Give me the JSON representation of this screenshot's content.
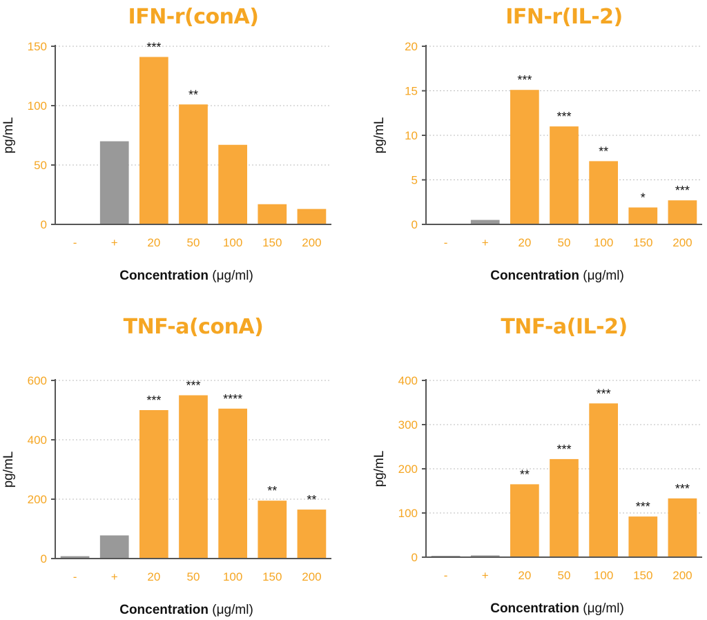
{
  "chart_data": [
    {
      "type": "bar",
      "title": "IFN-r(conA)",
      "xlabel_bold": "Concentration",
      "xlabel_unit": "(μg/ml)",
      "ylabel": "pg/mL",
      "categories": [
        "-",
        "+",
        "20",
        "50",
        "100",
        "150",
        "200"
      ],
      "values": [
        0,
        70,
        141,
        101,
        67,
        17,
        13
      ],
      "significance": [
        "",
        "",
        "***",
        "**",
        "",
        "",
        ""
      ],
      "ylim": [
        0,
        150
      ],
      "yticks": [
        0,
        50,
        100,
        150
      ],
      "grid": true,
      "bar_colors": [
        "#999999",
        "#999999",
        "#f9a93a",
        "#f9a93a",
        "#f9a93a",
        "#f9a93a",
        "#f9a93a"
      ]
    },
    {
      "type": "bar",
      "title": "IFN-r(IL-2)",
      "xlabel_bold": "Concentration",
      "xlabel_unit": "(μg/ml)",
      "ylabel": "pg/mL",
      "categories": [
        "-",
        "+",
        "20",
        "50",
        "100",
        "150",
        "200"
      ],
      "values": [
        0,
        0.5,
        15.1,
        11,
        7.1,
        1.9,
        2.7
      ],
      "significance": [
        "",
        "",
        "***",
        "***",
        "**",
        "*",
        "***"
      ],
      "ylim": [
        0,
        20
      ],
      "yticks": [
        0,
        5,
        10,
        15,
        20
      ],
      "grid": true,
      "bar_colors": [
        "#999999",
        "#999999",
        "#f9a93a",
        "#f9a93a",
        "#f9a93a",
        "#f9a93a",
        "#f9a93a"
      ]
    },
    {
      "type": "bar",
      "title": "TNF-a(conA)",
      "xlabel_bold": "Concentration",
      "xlabel_unit": "(μg/ml)",
      "ylabel": "pg/mL",
      "categories": [
        "-",
        "+",
        "20",
        "50",
        "100",
        "150",
        "200"
      ],
      "values": [
        8,
        78,
        500,
        550,
        505,
        195,
        165
      ],
      "significance": [
        "",
        "",
        "***",
        "***",
        "****",
        "**",
        "**"
      ],
      "ylim": [
        0,
        600
      ],
      "yticks": [
        0,
        200,
        400,
        600
      ],
      "grid": true,
      "bar_colors": [
        "#999999",
        "#999999",
        "#f9a93a",
        "#f9a93a",
        "#f9a93a",
        "#f9a93a",
        "#f9a93a"
      ]
    },
    {
      "type": "bar",
      "title": "TNF-a(IL-2)",
      "xlabel_bold": "Concentration",
      "xlabel_unit": "(μg/ml)",
      "ylabel": "pg/mL",
      "categories": [
        "-",
        "+",
        "20",
        "50",
        "100",
        "150",
        "200"
      ],
      "values": [
        3,
        4,
        165,
        222,
        348,
        92,
        133
      ],
      "significance": [
        "",
        "",
        "**",
        "***",
        "***",
        "***",
        "***"
      ],
      "ylim": [
        0,
        400
      ],
      "yticks": [
        0,
        100,
        200,
        300,
        400
      ],
      "grid": true,
      "bar_colors": [
        "#999999",
        "#999999",
        "#f9a93a",
        "#f9a93a",
        "#f9a93a",
        "#f9a93a",
        "#f9a93a"
      ]
    }
  ]
}
